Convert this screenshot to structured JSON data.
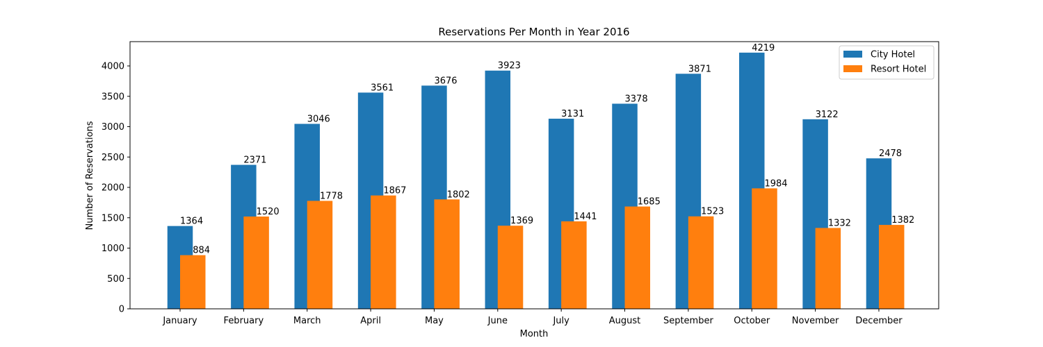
{
  "chart_data": {
    "type": "bar",
    "title": "Reservations Per Month in Year 2016",
    "xlabel": "Month",
    "ylabel": "Number of Reservations",
    "categories": [
      "January",
      "February",
      "March",
      "April",
      "May",
      "June",
      "July",
      "August",
      "September",
      "October",
      "November",
      "December"
    ],
    "series": [
      {
        "name": "City Hotel",
        "color": "#1f77b4",
        "values": [
          1364,
          2371,
          3046,
          3561,
          3676,
          3923,
          3131,
          3378,
          3871,
          4219,
          3122,
          2478
        ]
      },
      {
        "name": "Resort Hotel",
        "color": "#ff7f0e",
        "values": [
          884,
          1520,
          1778,
          1867,
          1802,
          1369,
          1441,
          1685,
          1523,
          1984,
          1332,
          1382
        ]
      }
    ],
    "ylim": [
      0,
      4400
    ],
    "yticks": [
      0,
      500,
      1000,
      1500,
      2000,
      2500,
      3000,
      3500,
      4000
    ],
    "legend_position": "top-right",
    "grid": false
  }
}
